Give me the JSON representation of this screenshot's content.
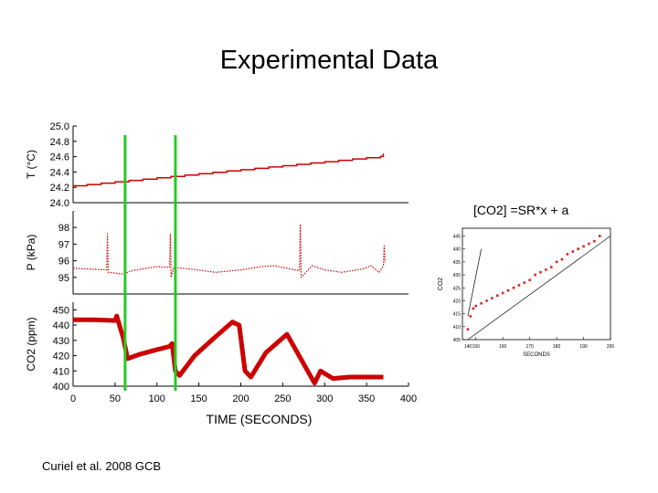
{
  "slide": {
    "title": "Experimental Data",
    "citation": "Curiel et al. 2008 GCB",
    "equation": "[CO2] =SR*x + a"
  },
  "colors": {
    "series": "#cc0000",
    "markers": "#22cc22",
    "axis": "#000000",
    "inset_points": "#dd2222"
  },
  "chart_data": [
    {
      "type": "line",
      "panel": "temperature",
      "ylabel": "T (°C)",
      "ylim": [
        24.0,
        25.0
      ],
      "yticks": [
        "25.0",
        "24.8",
        "24.6",
        "24.4",
        "24.2",
        "24.0"
      ],
      "xlim": [
        0,
        400
      ],
      "series": [
        {
          "x": [
            0,
            400
          ],
          "y": [
            24.22,
            24.64
          ]
        }
      ]
    },
    {
      "type": "line",
      "panel": "pressure",
      "ylabel": "P (kPa)",
      "ylim": [
        94,
        99
      ],
      "yticks": [
        "98",
        "97",
        "96",
        "95"
      ],
      "xlim": [
        0,
        400
      ],
      "series": [
        {
          "x": [
            0,
            20,
            40,
            41,
            42,
            60,
            70,
            100,
            115,
            116,
            117,
            120,
            140,
            170,
            200,
            225,
            240,
            270,
            271,
            272,
            285,
            300,
            320,
            345,
            355,
            365,
            370,
            371,
            372
          ],
          "y": [
            95.55,
            95.5,
            95.45,
            97.6,
            95.3,
            95.2,
            95.4,
            95.65,
            95.6,
            97.6,
            95.0,
            95.6,
            95.5,
            95.3,
            95.45,
            95.65,
            95.7,
            95.4,
            98.2,
            95.0,
            95.7,
            95.45,
            95.3,
            95.5,
            95.7,
            95.3,
            95.7,
            96.9,
            95.9
          ]
        }
      ]
    },
    {
      "type": "line",
      "panel": "co2",
      "ylabel": "CO2 (ppm)",
      "xlabel": "TIME (SECONDS)",
      "ylim": [
        400,
        455
      ],
      "yticks": [
        "450",
        "440",
        "430",
        "420",
        "410",
        "400"
      ],
      "xlim": [
        0,
        400
      ],
      "xticks": [
        "0",
        "50",
        "100",
        "150",
        "200",
        "250",
        "300",
        "350",
        "400"
      ],
      "series": [
        {
          "x": [
            0,
            25,
            50,
            52,
            60,
            65,
            80,
            100,
            115,
            118,
            122,
            127,
            145,
            165,
            190,
            198,
            205,
            212,
            230,
            255,
            288,
            295,
            310,
            330,
            370
          ],
          "y": [
            443.5,
            443.5,
            443,
            446,
            431,
            418,
            421,
            424,
            426,
            428,
            410,
            407,
            420,
            430,
            442,
            440,
            410,
            406,
            422,
            434,
            402,
            410,
            405,
            406,
            406
          ]
        }
      ],
      "vlines_x": [
        62,
        122
      ]
    },
    {
      "type": "scatter",
      "panel": "inset-fit",
      "xlabel": "SECONDS",
      "ylabel": "CO2",
      "xlim": [
        145,
        200
      ],
      "ylim": [
        405,
        448
      ],
      "xticks": [
        "140",
        "150",
        "160",
        "170",
        "180",
        "190",
        "200"
      ],
      "yticks": [
        "445",
        "440",
        "435",
        "430",
        "425",
        "420",
        "415",
        "410",
        "405"
      ],
      "series": [
        {
          "x": [
            147,
            148,
            149,
            150,
            152,
            154,
            156,
            158,
            160,
            162,
            164,
            166,
            168,
            170,
            172,
            174,
            176,
            178,
            180,
            182,
            184,
            186,
            188,
            190,
            192,
            194,
            196
          ],
          "y": [
            409,
            414,
            417,
            418,
            419,
            420,
            421,
            422,
            423,
            424,
            425,
            426,
            427,
            428,
            430,
            431,
            432,
            433,
            435,
            436,
            438,
            439,
            440,
            441,
            442,
            443,
            445
          ]
        }
      ]
    }
  ]
}
